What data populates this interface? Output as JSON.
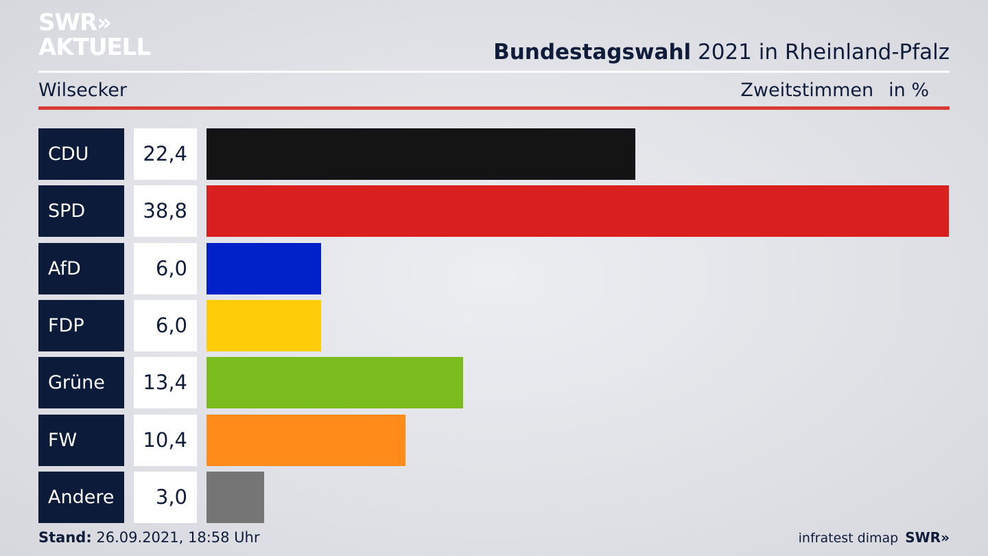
{
  "logo": {
    "line1": "SWR»",
    "line2": "AKTUELL"
  },
  "header": {
    "title_bold": "Bundestagswahl",
    "title_rest": " 2021 in Rheinland-Pfalz",
    "location": "Wilsecker",
    "measure": "Zweitstimmen",
    "unit": "in %"
  },
  "chart_data": {
    "type": "bar",
    "orientation": "horizontal",
    "categories": [
      "CDU",
      "SPD",
      "AfD",
      "FDP",
      "Grüne",
      "FW",
      "Andere"
    ],
    "values": [
      22.4,
      38.8,
      6.0,
      6.0,
      13.4,
      10.4,
      3.0
    ],
    "value_labels": [
      "22,4",
      "38,8",
      "6,0",
      "6,0",
      "13,4",
      "10,4",
      "3,0"
    ],
    "colors": [
      "#141414",
      "#d9201f",
      "#0020c8",
      "#ffcc0a",
      "#7bbd1e",
      "#ff8b1a",
      "#757575"
    ],
    "xlim": [
      0,
      38.8
    ]
  },
  "footer": {
    "stand_label": "Stand:",
    "stand_value": " 26.09.2021, 18:58 Uhr",
    "source": "infratest dimap",
    "source_logo": "SWR»"
  }
}
